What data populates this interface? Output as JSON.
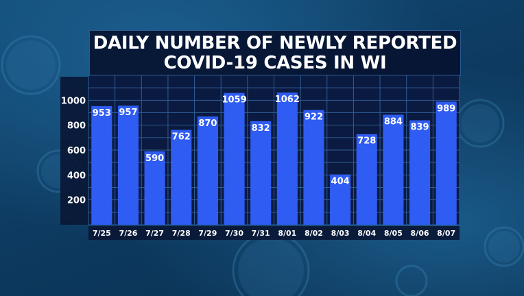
{
  "chart_data": {
    "type": "bar",
    "title_lines": [
      "DAILY NUMBER OF NEWLY REPORTED",
      "COVID-19 CASES IN WI"
    ],
    "categories": [
      "7/25",
      "7/26",
      "7/27",
      "7/28",
      "7/29",
      "7/30",
      "7/31",
      "8/01",
      "8/02",
      "8/03",
      "8/04",
      "8/05",
      "8/06",
      "8/07"
    ],
    "values": [
      953,
      957,
      590,
      762,
      870,
      1059,
      832,
      1062,
      922,
      404,
      728,
      884,
      839,
      989
    ],
    "y_ticks": [
      "200",
      "400",
      "600",
      "800",
      "1000"
    ],
    "xlabel": "",
    "ylabel": "",
    "ylim": [
      0,
      1200
    ],
    "grid": true,
    "legend": "none",
    "colors": {
      "bar": "#2f5cf2",
      "plot_bg": "#0b1a40",
      "grid": "#2e5e96",
      "text": "#ffffff"
    }
  }
}
